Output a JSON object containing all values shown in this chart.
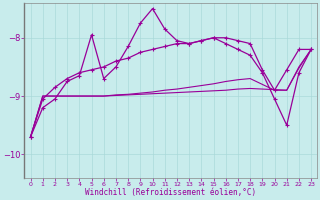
{
  "xlabel": "Windchill (Refroidissement éolien,°C)",
  "background_color": "#c8ecec",
  "line_color": "#990099",
  "ylim": [
    -10.4,
    -7.4
  ],
  "xlim": [
    -0.5,
    23.5
  ],
  "yticks": [
    -10,
    -9,
    -8
  ],
  "xticks": [
    0,
    1,
    2,
    3,
    4,
    5,
    6,
    7,
    8,
    9,
    10,
    11,
    12,
    13,
    14,
    15,
    16,
    17,
    18,
    19,
    20,
    21,
    22,
    23
  ],
  "line1_x": [
    0,
    1,
    2,
    3,
    4,
    5,
    6,
    7,
    8,
    9,
    10,
    11,
    12,
    13,
    14,
    15,
    16,
    17,
    18,
    19,
    20,
    21,
    22,
    23
  ],
  "line1_y": [
    -9.7,
    -9.2,
    -9.05,
    -8.75,
    -8.65,
    -7.95,
    -8.7,
    -8.5,
    -8.15,
    -7.75,
    -7.5,
    -7.85,
    -8.05,
    -8.1,
    -8.05,
    -8.0,
    -8.1,
    -8.2,
    -8.3,
    -8.6,
    -9.05,
    -9.5,
    -8.6,
    -8.2
  ],
  "line2_x": [
    0,
    1,
    2,
    3,
    4,
    5,
    6,
    7,
    8,
    9,
    10,
    11,
    12,
    13,
    14,
    15,
    16,
    17,
    18,
    19,
    20,
    21,
    22,
    23
  ],
  "line2_y": [
    -9.7,
    -9.05,
    -8.85,
    -8.7,
    -8.6,
    -8.55,
    -8.5,
    -8.4,
    -8.35,
    -8.25,
    -8.2,
    -8.15,
    -8.1,
    -8.1,
    -8.05,
    -8.0,
    -8.0,
    -8.05,
    -8.1,
    -8.55,
    -8.9,
    -8.55,
    -8.2,
    -8.2
  ],
  "line3_x": [
    0,
    1,
    2,
    3,
    4,
    5,
    6,
    7,
    8,
    9,
    10,
    11,
    12,
    13,
    14,
    15,
    16,
    17,
    18,
    19,
    20,
    21,
    22,
    23
  ],
  "line3_y": [
    -9.7,
    -9.0,
    -9.0,
    -9.0,
    -9.0,
    -9.0,
    -9.0,
    -8.98,
    -8.97,
    -8.95,
    -8.93,
    -8.9,
    -8.88,
    -8.85,
    -8.82,
    -8.79,
    -8.75,
    -8.72,
    -8.7,
    -8.8,
    -8.9,
    -8.9,
    -8.5,
    -8.2
  ],
  "line4_x": [
    0,
    1,
    2,
    3,
    4,
    5,
    6,
    7,
    8,
    9,
    10,
    11,
    12,
    13,
    14,
    15,
    16,
    17,
    18,
    19,
    20,
    21,
    22,
    23
  ],
  "line4_y": [
    -9.7,
    -9.0,
    -9.0,
    -9.0,
    -9.0,
    -9.0,
    -9.0,
    -8.99,
    -8.98,
    -8.97,
    -8.96,
    -8.95,
    -8.94,
    -8.93,
    -8.92,
    -8.91,
    -8.9,
    -8.88,
    -8.87,
    -8.88,
    -8.89,
    -8.9,
    -8.52,
    -8.2
  ]
}
